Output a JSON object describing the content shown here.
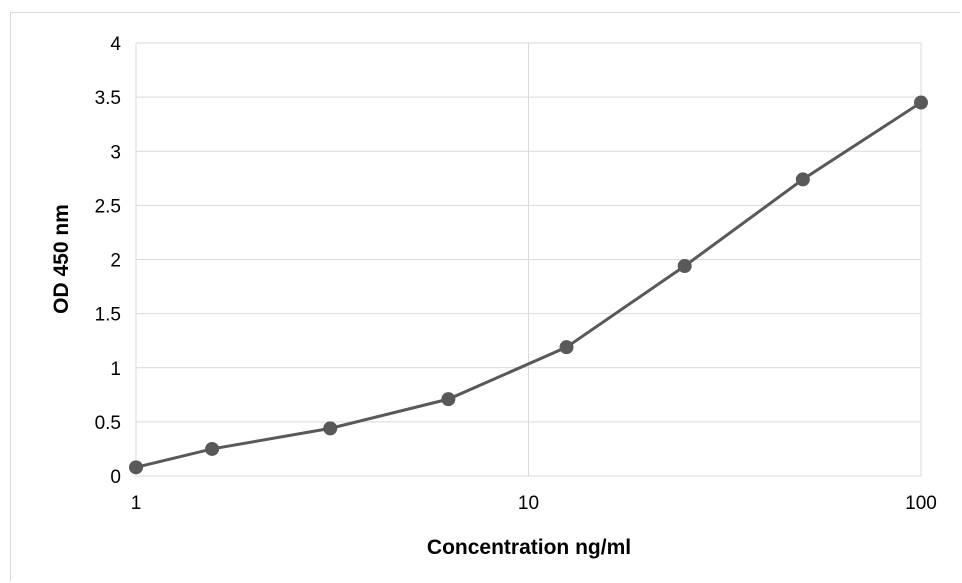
{
  "chart_data": {
    "type": "line",
    "title": "",
    "xlabel": "Concentration ng/ml",
    "ylabel": "OD 450 nm",
    "x_scale": "log",
    "xlim": [
      1,
      100
    ],
    "ylim": [
      0,
      4
    ],
    "x_ticks": [
      1,
      10,
      100
    ],
    "x_tick_labels": [
      "1",
      "10",
      "100"
    ],
    "y_ticks": [
      0,
      0.5,
      1,
      1.5,
      2,
      2.5,
      3,
      3.5,
      4
    ],
    "y_tick_labels": [
      "0",
      "0.5",
      "1",
      "1.5",
      "2",
      "2.5",
      "3",
      "3.5",
      "4"
    ],
    "grid": true,
    "legend": "none",
    "series": [
      {
        "color": "#595959",
        "x": [
          1,
          1.5625,
          3.125,
          6.25,
          12.5,
          25,
          50,
          100
        ],
        "y": [
          0.08,
          0.25,
          0.44,
          0.71,
          1.19,
          1.94,
          2.74,
          3.45
        ]
      }
    ]
  }
}
